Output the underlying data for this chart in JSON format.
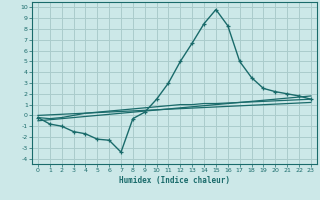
{
  "xlabel": "Humidex (Indice chaleur)",
  "background_color": "#cce8e8",
  "grid_color": "#aacccc",
  "line_color": "#1a6b6b",
  "xlim": [
    -0.5,
    23.5
  ],
  "ylim": [
    -4.5,
    10.5
  ],
  "xticks": [
    0,
    1,
    2,
    3,
    4,
    5,
    6,
    7,
    8,
    9,
    10,
    11,
    12,
    13,
    14,
    15,
    16,
    17,
    18,
    19,
    20,
    21,
    22,
    23
  ],
  "yticks": [
    -4,
    -3,
    -2,
    -1,
    0,
    1,
    2,
    3,
    4,
    5,
    6,
    7,
    8,
    9,
    10
  ],
  "curve1_x": [
    0,
    1,
    2,
    3,
    4,
    5,
    6,
    7,
    8,
    9,
    10,
    11,
    12,
    13,
    14,
    15,
    16,
    17,
    18,
    19,
    20,
    21,
    22,
    23
  ],
  "curve1_y": [
    -0.2,
    -0.8,
    -1.0,
    -1.5,
    -1.7,
    -2.2,
    -2.3,
    -3.4,
    -0.3,
    0.3,
    1.5,
    3.0,
    5.0,
    6.7,
    8.5,
    9.8,
    8.3,
    5.0,
    3.5,
    2.5,
    2.2,
    2.0,
    1.8,
    1.5
  ],
  "curve2_x": [
    0,
    1,
    2,
    3,
    4,
    5,
    6,
    7,
    8,
    9,
    10,
    11,
    12,
    13,
    14,
    15,
    16,
    17,
    18,
    19,
    20,
    21,
    22,
    23
  ],
  "curve2_y": [
    -0.2,
    -0.3,
    -0.2,
    0.0,
    0.2,
    0.3,
    0.4,
    0.5,
    0.6,
    0.7,
    0.8,
    0.9,
    1.0,
    1.0,
    1.1,
    1.1,
    1.15,
    1.2,
    1.25,
    1.3,
    1.35,
    1.4,
    1.45,
    1.5
  ],
  "curve3_x": [
    0,
    23
  ],
  "curve3_y": [
    -0.5,
    1.8
  ],
  "curve4_x": [
    0,
    23
  ],
  "curve4_y": [
    0.0,
    1.2
  ]
}
